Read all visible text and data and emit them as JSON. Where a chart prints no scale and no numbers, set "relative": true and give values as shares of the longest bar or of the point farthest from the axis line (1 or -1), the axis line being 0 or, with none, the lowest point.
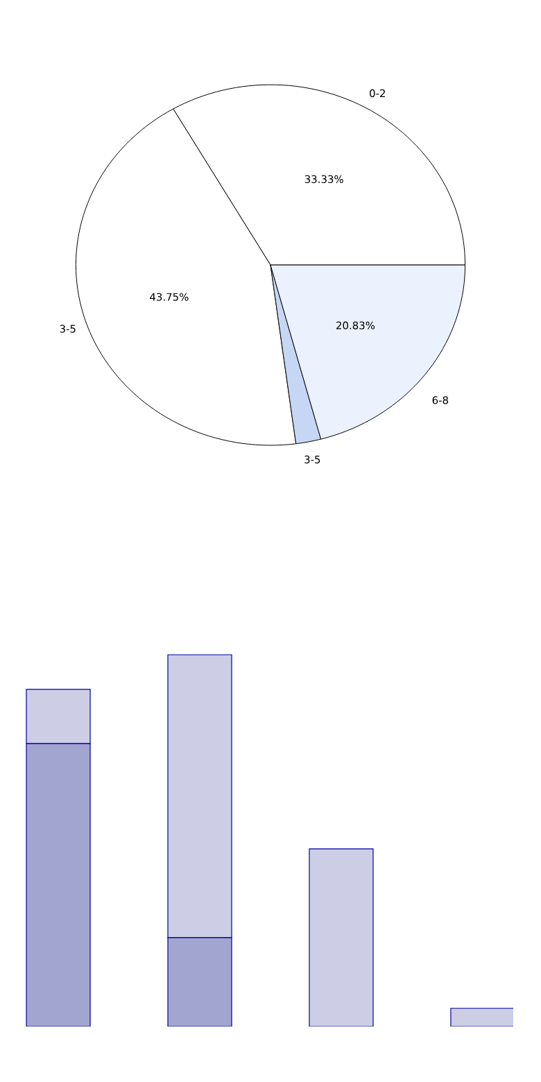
{
  "chart_data": [
    {
      "type": "pie",
      "categories": [
        "0-2",
        "3-5",
        "3-5",
        "6-8"
      ],
      "values": [
        33.33,
        43.75,
        2.08,
        20.83
      ],
      "colors": [
        "#ffffff",
        "#ffffff",
        "#c6d6f5",
        "#ebf1fd"
      ],
      "value_labels": [
        "33.33%",
        "43.75%",
        null,
        "20.83%"
      ]
    },
    {
      "type": "bar",
      "relative": true,
      "stacked": true,
      "categories": [
        null,
        null,
        null,
        null
      ],
      "series": [
        {
          "color": "#a3a5d1",
          "values": [
            0.761,
            0.239,
            0,
            0
          ]
        },
        {
          "color": "#cdcee6",
          "values": [
            0.146,
            0.761,
            0.478,
            0.049
          ]
        }
      ]
    }
  ]
}
